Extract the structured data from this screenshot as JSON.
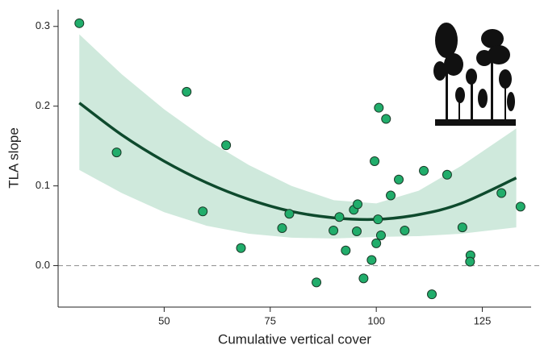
{
  "chart_data": {
    "type": "scatter",
    "xlabel": "Cumulative vertical cover",
    "ylabel": "TLA slope",
    "x": [
      30.0,
      38.8,
      55.3,
      59.1,
      64.6,
      68.1,
      77.8,
      79.5,
      85.9,
      89.9,
      91.3,
      92.8,
      94.7,
      95.6,
      95.4,
      97.0,
      98.9,
      99.6,
      100.0,
      100.4,
      100.6,
      101.1,
      102.3,
      103.4,
      105.3,
      106.7,
      111.2,
      113.1,
      116.7,
      120.3,
      122.2,
      122.1,
      129.5,
      134.0
    ],
    "y": [
      0.304,
      0.142,
      0.218,
      0.068,
      0.151,
      0.022,
      0.047,
      0.065,
      -0.021,
      0.044,
      0.061,
      0.019,
      0.07,
      0.077,
      0.043,
      -0.016,
      0.007,
      0.131,
      0.028,
      0.058,
      0.198,
      0.038,
      0.184,
      0.088,
      0.108,
      0.044,
      0.119,
      -0.036,
      0.114,
      0.048,
      0.013,
      0.005,
      0.091,
      0.074
    ],
    "color": "#21ad6b",
    "fit": {
      "x": [
        30,
        40,
        50,
        60,
        70,
        80,
        90,
        100,
        110,
        120,
        133
      ],
      "y": [
        0.204,
        0.164,
        0.131,
        0.104,
        0.083,
        0.068,
        0.06,
        0.058,
        0.064,
        0.078,
        0.11
      ],
      "upper": [
        0.29,
        0.24,
        0.196,
        0.158,
        0.126,
        0.1,
        0.082,
        0.078,
        0.094,
        0.125,
        0.172
      ],
      "lower": [
        0.12,
        0.091,
        0.067,
        0.05,
        0.04,
        0.035,
        0.034,
        0.036,
        0.037,
        0.04,
        0.048
      ],
      "color": "#0e4a2d",
      "band_color": "#cfe9dc"
    },
    "reference_line": 0,
    "xlim": [
      25,
      136.5
    ],
    "ylim": [
      -0.052,
      0.321
    ],
    "xticks": [
      50,
      75,
      100,
      125
    ],
    "yticks": [
      {
        "value": 0,
        "label": "0.0"
      },
      0.1,
      0.2,
      0.3
    ]
  }
}
